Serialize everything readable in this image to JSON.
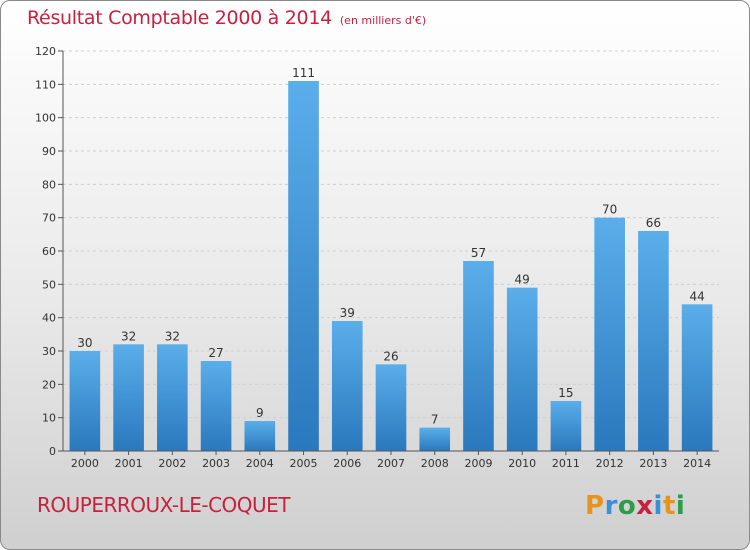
{
  "title": "Résultat Comptable 2000 à 2014",
  "title_unit": "(en milliers d'€)",
  "commune": "ROUPERROUX-LE-COQUET",
  "logo": {
    "letters": [
      "P",
      "r",
      "o",
      "x",
      "i",
      "t",
      "i"
    ],
    "colors": [
      "#e8931e",
      "#3a8fd6",
      "#2a9e47",
      "#c8203f",
      "#3a8fd6",
      "#e8931e",
      "#2a9e47"
    ]
  },
  "colors": {
    "bar": "#4a9fe0",
    "bar_dark": "#2a78bd",
    "title": "#c8203f",
    "axis": "#555555",
    "grid": "#cfcfcf"
  },
  "chart_data": {
    "type": "bar",
    "title": "Résultat Comptable 2000 à 2014",
    "xlabel": "",
    "ylabel": "",
    "ylim": [
      0,
      120
    ],
    "yticks": [
      0,
      10,
      20,
      30,
      40,
      50,
      60,
      70,
      80,
      90,
      100,
      110,
      120
    ],
    "grid": true,
    "categories": [
      "2000",
      "2001",
      "2002",
      "2003",
      "2004",
      "2005",
      "2006",
      "2007",
      "2008",
      "2009",
      "2010",
      "2011",
      "2012",
      "2013",
      "2014"
    ],
    "values": [
      30,
      32,
      32,
      27,
      9,
      111,
      39,
      26,
      7,
      57,
      49,
      15,
      70,
      66,
      44
    ]
  }
}
